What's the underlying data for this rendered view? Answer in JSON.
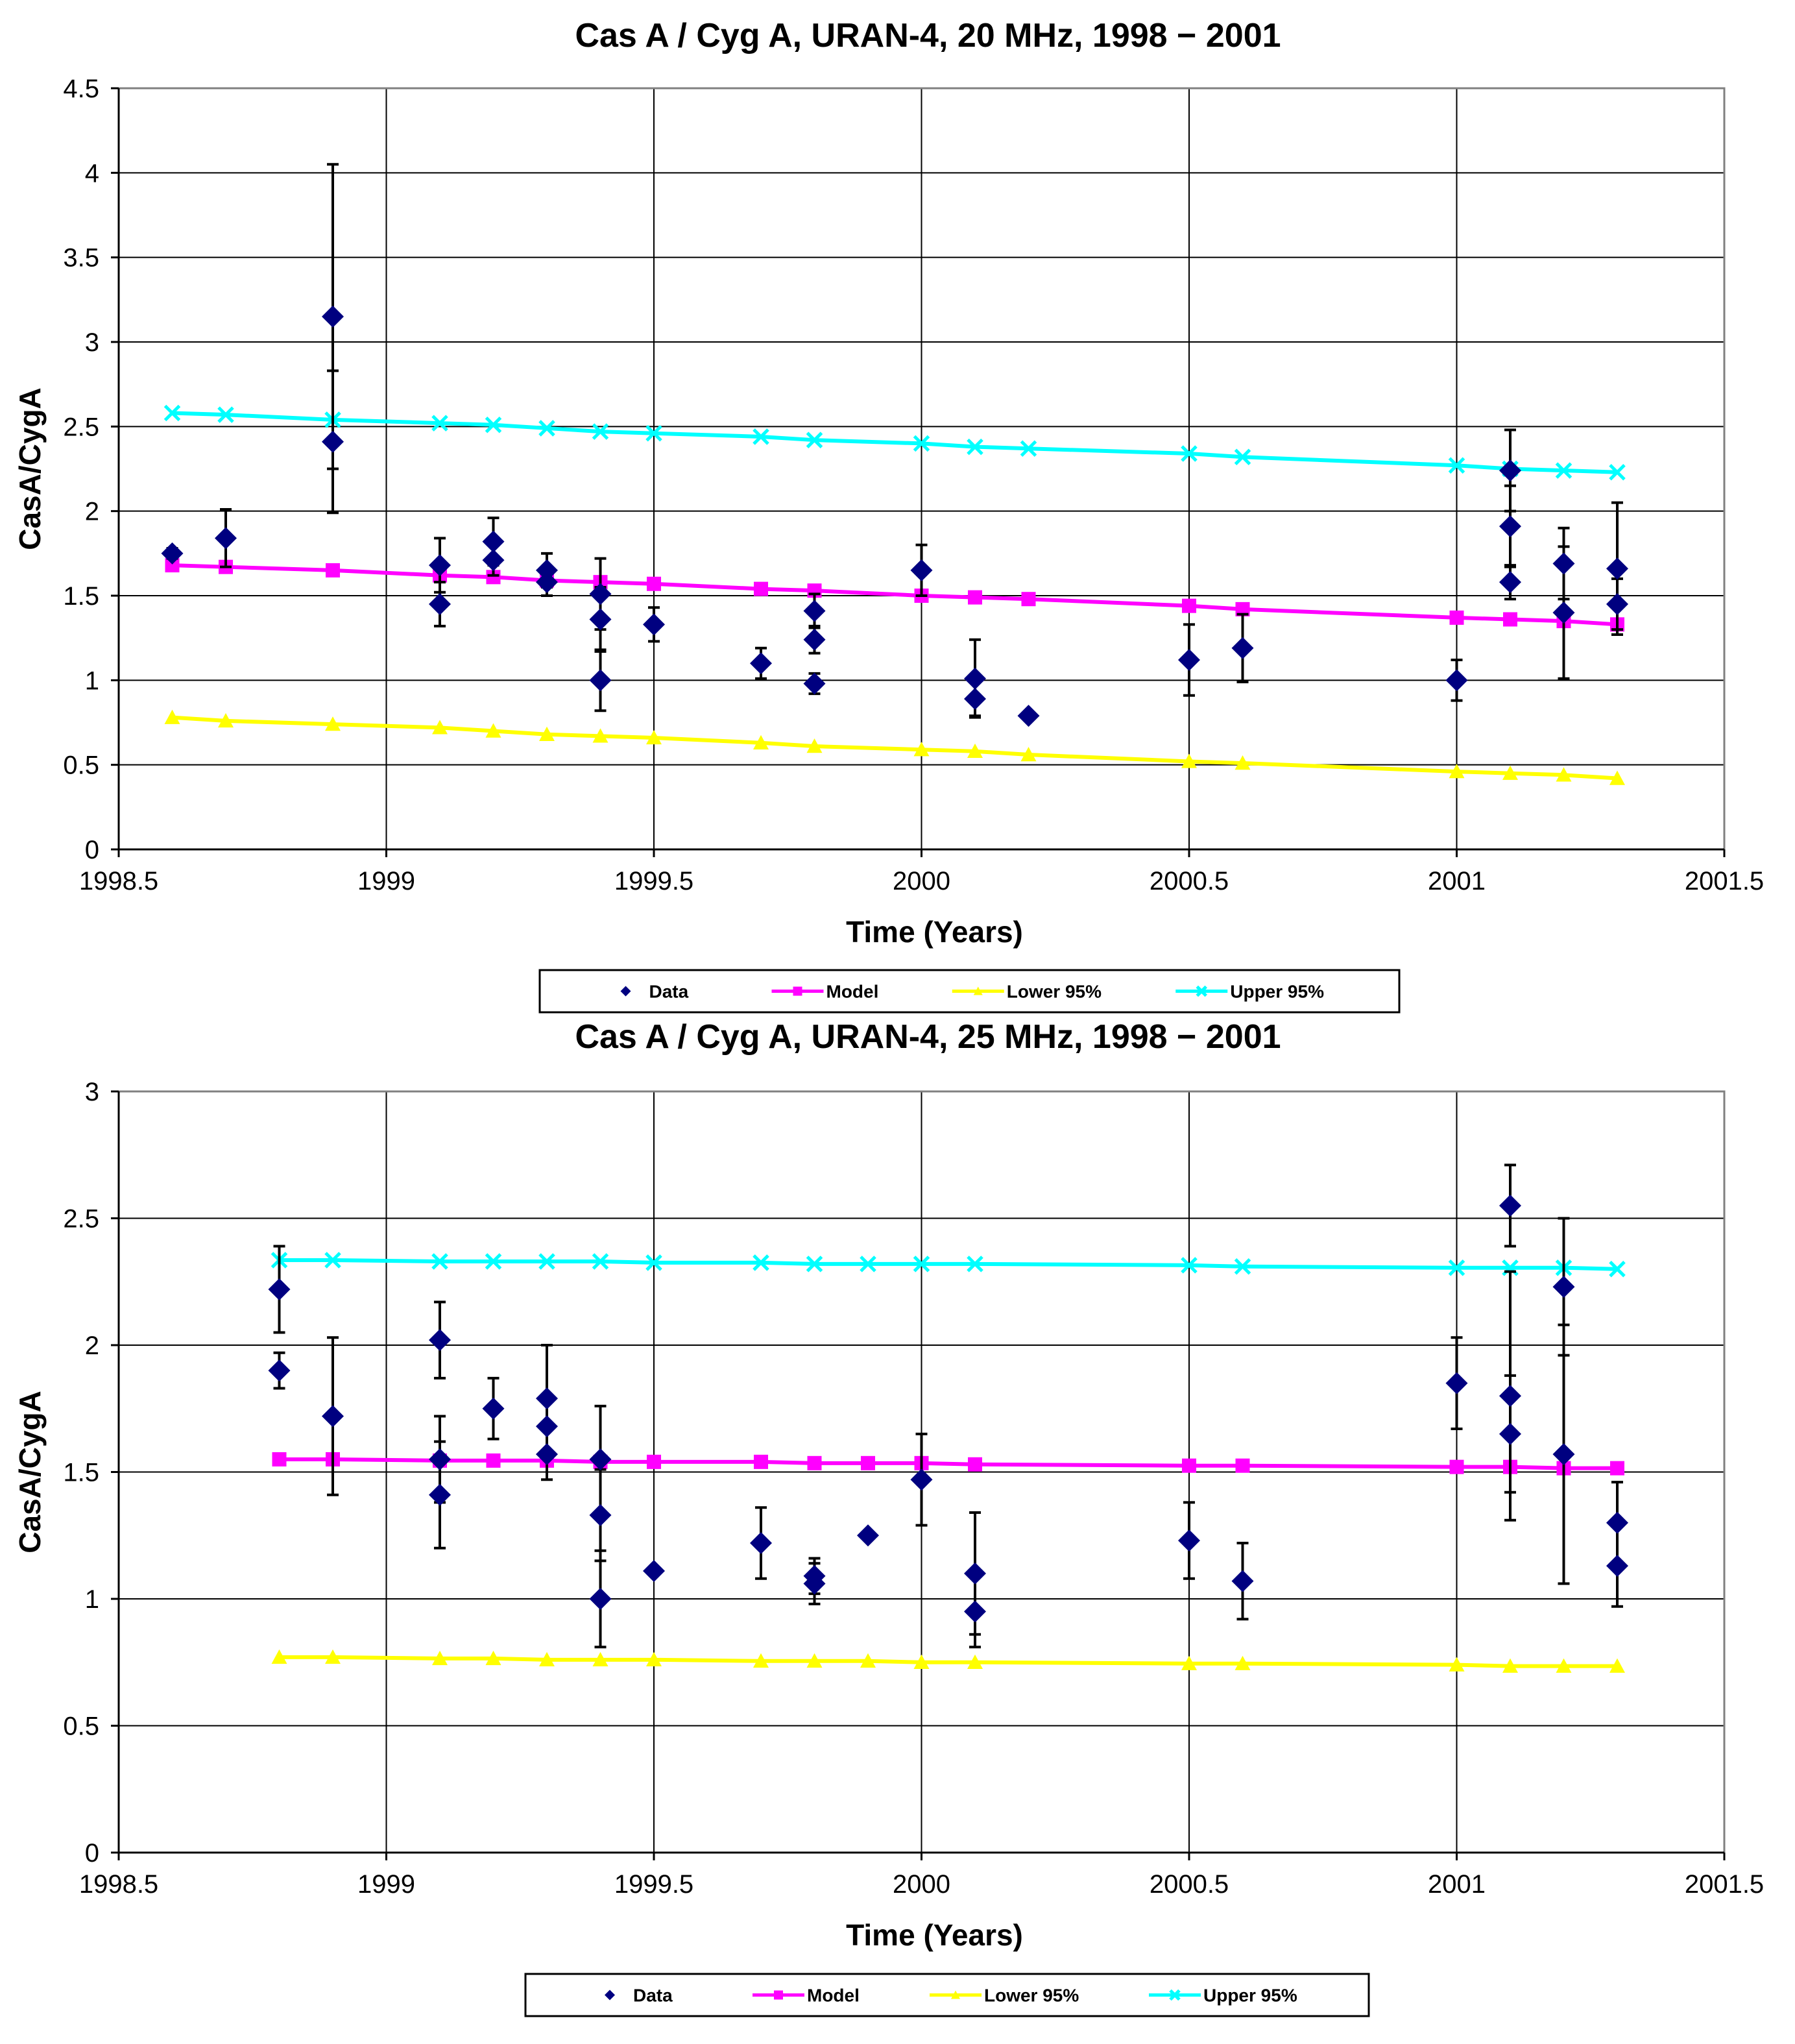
{
  "colors": {
    "data": "#000080",
    "model": "#FF00FF",
    "lower": "#FFFF00",
    "upper": "#00FFFF",
    "grid": "#000000",
    "errorbar": "#000000"
  },
  "chart_data": [
    {
      "type": "scatter",
      "title": "Cas A / Cyg A, URAN-4, 20 MHz, 1998 − 2001",
      "xlabel": "Time (Years)",
      "ylabel": "CasA/CygA",
      "xlim": [
        1998.5,
        2001.5
      ],
      "ylim": [
        0,
        4.5
      ],
      "xticks": [
        1998.5,
        1999,
        1999.5,
        2000,
        2000.5,
        2001,
        2001.5
      ],
      "xtick_labels": [
        "1998.5",
        "1999",
        "1999.5",
        "2000",
        "2000.5",
        "2001",
        "2001.5"
      ],
      "yticks": [
        0,
        0.5,
        1,
        1.5,
        2,
        2.5,
        3,
        3.5,
        4,
        4.5
      ],
      "ytick_labels": [
        "0",
        "0.5",
        "1",
        "1.5",
        "2",
        "2.5",
        "3",
        "3.5",
        "4",
        "4.5"
      ],
      "legend": [
        "Data",
        "Model",
        "Lower 95%",
        "Upper 95%"
      ],
      "legend_position": "bottom",
      "data": {
        "x": [
          1998.6,
          1998.7,
          1998.9,
          1998.9,
          1999.1,
          1999.1,
          1999.2,
          1999.2,
          1999.3,
          1999.3,
          1999.4,
          1999.4,
          1999.4,
          1999.5,
          1999.7,
          1999.8,
          1999.8,
          1999.8,
          2000.0,
          2000.1,
          2000.1,
          2000.2,
          2000.5,
          2000.6,
          2001.0,
          2001.1,
          2001.1,
          2001.1,
          2001.2,
          2001.2,
          2001.3,
          2001.3
        ],
        "y": [
          1.75,
          1.84,
          3.15,
          2.41,
          1.68,
          1.45,
          1.82,
          1.71,
          1.65,
          1.58,
          1.51,
          1.36,
          1.0,
          1.33,
          1.1,
          1.41,
          1.24,
          0.98,
          1.65,
          1.01,
          0.89,
          0.79,
          1.12,
          1.19,
          1.0,
          2.24,
          1.91,
          1.58,
          1.69,
          1.4,
          1.66,
          1.45
        ],
        "err": [
          0.03,
          0.17,
          0.9,
          0.42,
          0.16,
          0.13,
          0.14,
          0.09,
          0.1,
          0.08,
          0.21,
          0.19,
          0.18,
          0.1,
          0.09,
          0.1,
          0.08,
          0.06,
          0.15,
          0.23,
          0.1,
          0.01,
          0.21,
          0.2,
          0.12,
          0.24,
          0.24,
          0.1,
          0.21,
          0.39,
          0.39,
          0.15
        ]
      },
      "series": [
        {
          "name": "Model",
          "x": [
            1998.6,
            1998.7,
            1998.9,
            1999.1,
            1999.2,
            1999.3,
            1999.4,
            1999.5,
            1999.7,
            1999.8,
            2000.0,
            2000.1,
            2000.2,
            2000.5,
            2000.6,
            2001.0,
            2001.1,
            2001.2,
            2001.3
          ],
          "values": [
            1.68,
            1.67,
            1.65,
            1.62,
            1.61,
            1.59,
            1.58,
            1.57,
            1.54,
            1.53,
            1.5,
            1.49,
            1.48,
            1.44,
            1.42,
            1.37,
            1.36,
            1.35,
            1.33
          ]
        },
        {
          "name": "Lower 95%",
          "x": [
            1998.6,
            1998.7,
            1998.9,
            1999.1,
            1999.2,
            1999.3,
            1999.4,
            1999.5,
            1999.7,
            1999.8,
            2000.0,
            2000.1,
            2000.2,
            2000.5,
            2000.6,
            2001.0,
            2001.1,
            2001.2,
            2001.3
          ],
          "values": [
            0.78,
            0.76,
            0.74,
            0.72,
            0.7,
            0.68,
            0.67,
            0.66,
            0.63,
            0.61,
            0.59,
            0.58,
            0.56,
            0.52,
            0.51,
            0.46,
            0.45,
            0.44,
            0.42
          ]
        },
        {
          "name": "Upper 95%",
          "x": [
            1998.6,
            1998.7,
            1998.9,
            1999.1,
            1999.2,
            1999.3,
            1999.4,
            1999.5,
            1999.7,
            1999.8,
            2000.0,
            2000.1,
            2000.2,
            2000.5,
            2000.6,
            2001.0,
            2001.1,
            2001.2,
            2001.3
          ],
          "values": [
            2.58,
            2.57,
            2.54,
            2.52,
            2.51,
            2.49,
            2.47,
            2.46,
            2.44,
            2.42,
            2.4,
            2.38,
            2.37,
            2.34,
            2.32,
            2.27,
            2.25,
            2.24,
            2.23
          ]
        }
      ]
    },
    {
      "type": "scatter",
      "title": "Cas A / Cyg A, URAN-4, 25 MHz, 1998 − 2001",
      "xlabel": "Time (Years)",
      "ylabel": "CasA/CygA",
      "xlim": [
        1998.5,
        2001.5
      ],
      "ylim": [
        0,
        3
      ],
      "xticks": [
        1998.5,
        1999,
        1999.5,
        2000,
        2000.5,
        2001,
        2001.5
      ],
      "xtick_labels": [
        "1998.5",
        "1999",
        "1999.5",
        "2000",
        "2000.5",
        "2001",
        "2001.5"
      ],
      "yticks": [
        0,
        0.5,
        1,
        1.5,
        2,
        2.5,
        3
      ],
      "ytick_labels": [
        "0",
        "0.5",
        "1",
        "1.5",
        "2",
        "2.5",
        "3"
      ],
      "legend": [
        "Data",
        "Model",
        "Lower 95%",
        "Upper 95%"
      ],
      "legend_position": "bottom",
      "data": {
        "x": [
          1998.8,
          1998.8,
          1998.9,
          1999.1,
          1999.1,
          1999.1,
          1999.2,
          1999.3,
          1999.3,
          1999.3,
          1999.4,
          1999.4,
          1999.4,
          1999.5,
          1999.7,
          1999.8,
          1999.8,
          1999.9,
          2000.0,
          2000.1,
          2000.1,
          2000.5,
          2000.6,
          2001.0,
          2001.1,
          2001.1,
          2001.1,
          2001.2,
          2001.2,
          2001.3,
          2001.3
        ],
        "y": [
          2.22,
          1.9,
          1.72,
          2.02,
          1.55,
          1.41,
          1.75,
          1.79,
          1.68,
          1.57,
          1.55,
          1.33,
          1.0,
          1.11,
          1.22,
          1.09,
          1.06,
          1.25,
          1.47,
          1.1,
          0.95,
          1.23,
          1.07,
          1.85,
          2.55,
          1.8,
          1.65,
          2.23,
          1.57,
          1.3,
          1.13
        ],
        "err": [
          0.17,
          0.07,
          0.31,
          0.15,
          0.17,
          0.21,
          0.12,
          0.21,
          0.1,
          0.1,
          0.21,
          0.18,
          0.19,
          0.01,
          0.14,
          0.07,
          0.08,
          0.01,
          0.18,
          0.24,
          0.14,
          0.15,
          0.15,
          0.18,
          0.16,
          0.49,
          0.23,
          0.27,
          0.51,
          0.16,
          0.16
        ]
      },
      "series": [
        {
          "name": "Model",
          "x": [
            1998.8,
            1998.9,
            1999.1,
            1999.2,
            1999.3,
            1999.4,
            1999.5,
            1999.7,
            1999.8,
            1999.9,
            2000.0,
            2000.1,
            2000.5,
            2000.6,
            2001.0,
            2001.1,
            2001.2,
            2001.3
          ],
          "values": [
            1.55,
            1.55,
            1.545,
            1.545,
            1.545,
            1.54,
            1.54,
            1.54,
            1.535,
            1.535,
            1.535,
            1.53,
            1.525,
            1.525,
            1.52,
            1.52,
            1.515,
            1.515
          ]
        },
        {
          "name": "Lower 95%",
          "x": [
            1998.8,
            1998.9,
            1999.1,
            1999.2,
            1999.3,
            1999.4,
            1999.5,
            1999.7,
            1999.8,
            1999.9,
            2000.0,
            2000.1,
            2000.5,
            2000.6,
            2001.0,
            2001.1,
            2001.2,
            2001.3
          ],
          "values": [
            0.77,
            0.77,
            0.765,
            0.765,
            0.76,
            0.76,
            0.76,
            0.755,
            0.755,
            0.755,
            0.75,
            0.75,
            0.745,
            0.745,
            0.74,
            0.735,
            0.735,
            0.735
          ]
        },
        {
          "name": "Upper 95%",
          "x": [
            1998.8,
            1998.9,
            1999.1,
            1999.2,
            1999.3,
            1999.4,
            1999.5,
            1999.7,
            1999.8,
            1999.9,
            2000.0,
            2000.1,
            2000.5,
            2000.6,
            2001.0,
            2001.1,
            2001.2,
            2001.3
          ],
          "values": [
            2.335,
            2.335,
            2.33,
            2.33,
            2.33,
            2.33,
            2.325,
            2.325,
            2.32,
            2.32,
            2.32,
            2.32,
            2.315,
            2.31,
            2.305,
            2.305,
            2.305,
            2.3
          ]
        }
      ]
    }
  ]
}
